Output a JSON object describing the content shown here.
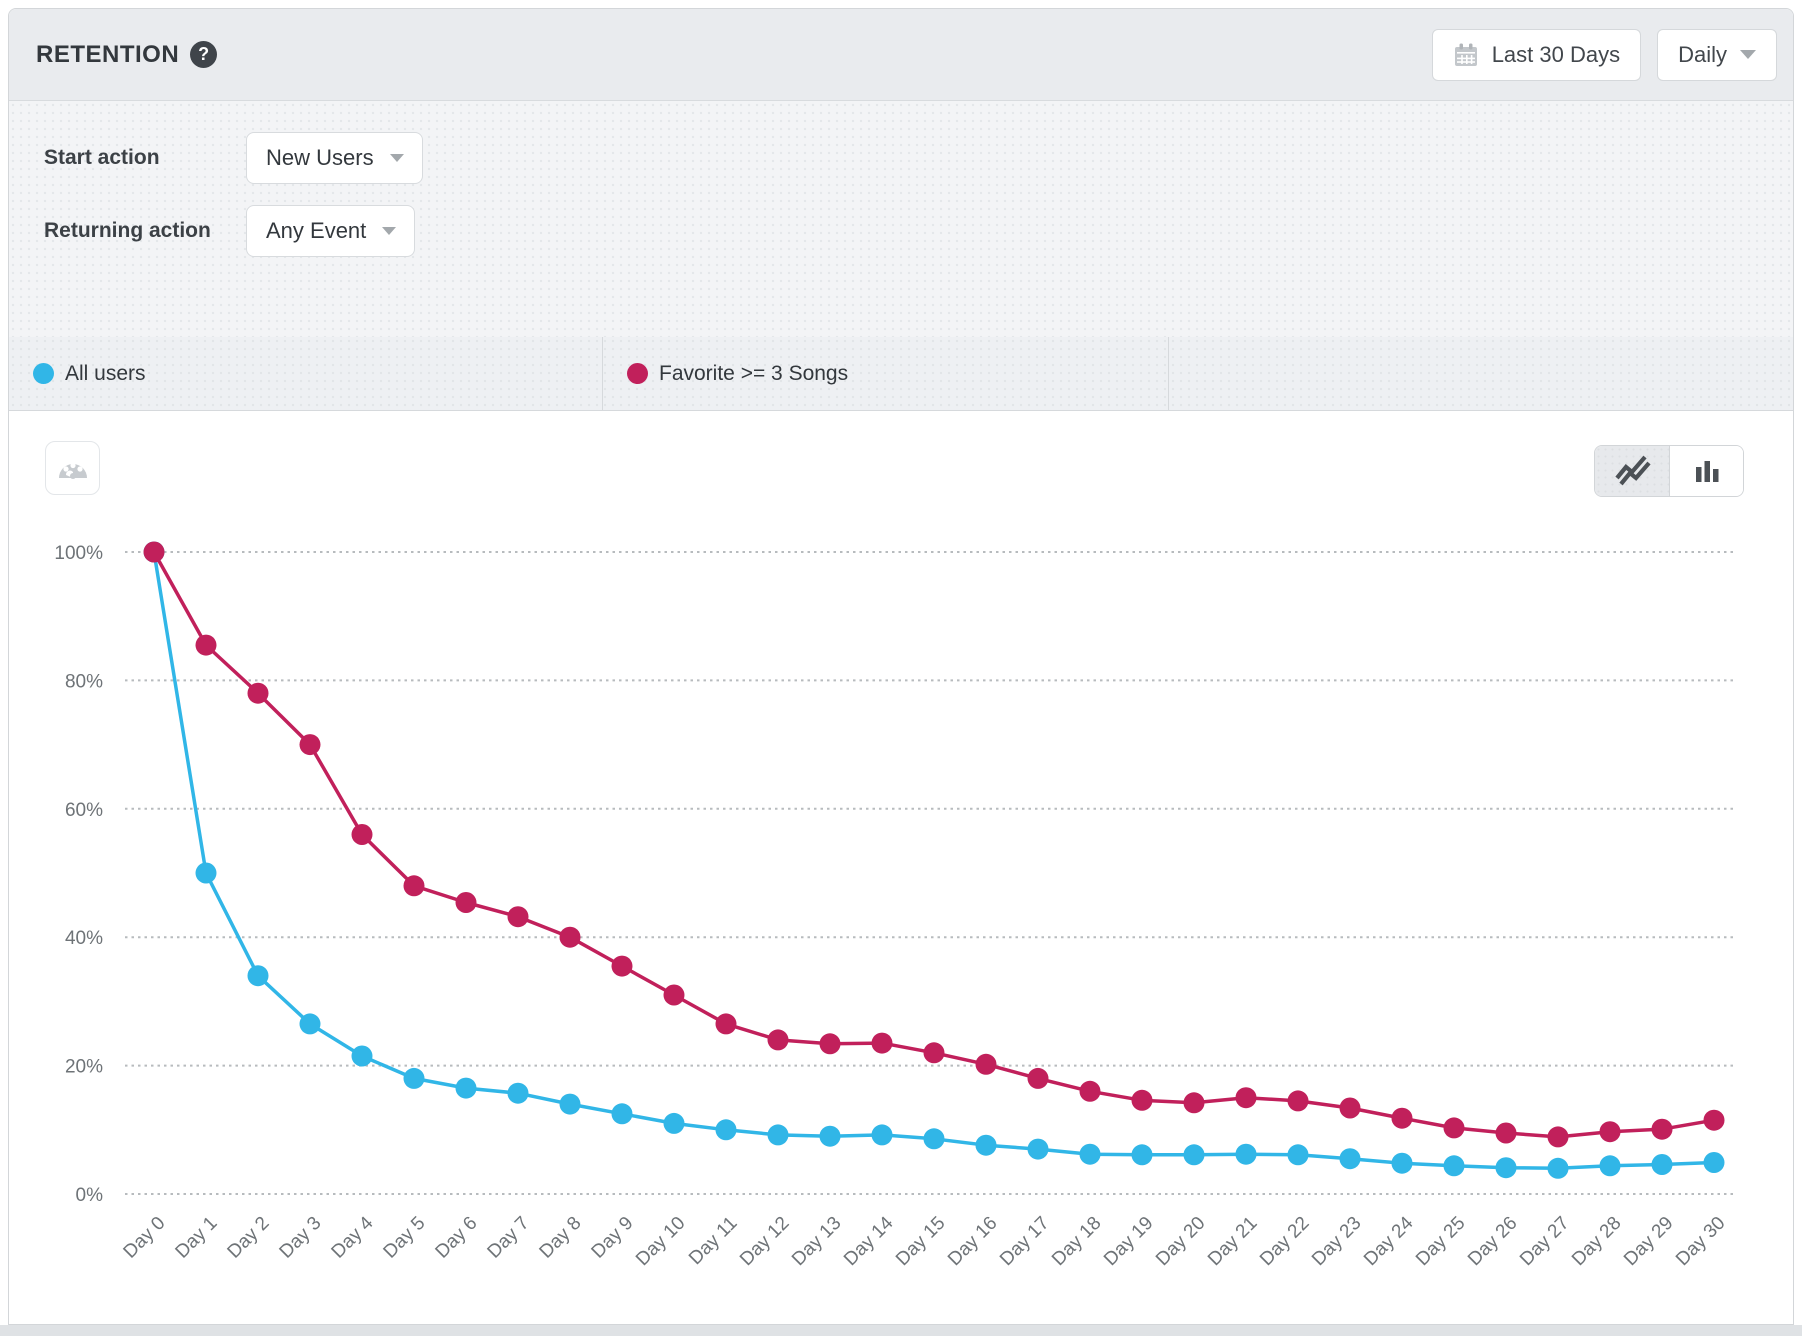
{
  "header": {
    "title": "RETENTION",
    "help_glyph": "?",
    "date_range": "Last 30 Days",
    "granularity": "Daily"
  },
  "filters": {
    "start_action_label": "Start action",
    "start_action_value": "New Users",
    "returning_action_label": "Returning action",
    "returning_action_value": "Any Event"
  },
  "legend": {
    "items": [
      {
        "label": "All users",
        "color": "#31b6e7"
      },
      {
        "label": "Favorite >= 3 Songs",
        "color": "#c1205b"
      }
    ]
  },
  "chart_toggle": {
    "options": [
      {
        "icon": "line-chart-icon",
        "selected": true
      },
      {
        "icon": "bar-chart-icon",
        "selected": false
      }
    ]
  },
  "chart_data": {
    "type": "line",
    "x_labels": [
      "Day 0",
      "Day 1",
      "Day 2",
      "Day 3",
      "Day 4",
      "Day 5",
      "Day 6",
      "Day 7",
      "Day 8",
      "Day 9",
      "Day 10",
      "Day 11",
      "Day 12",
      "Day 13",
      "Day 14",
      "Day 15",
      "Day 16",
      "Day 17",
      "Day 18",
      "Day 19",
      "Day 20",
      "Day 21",
      "Day 22",
      "Day 23",
      "Day 24",
      "Day 25",
      "Day 26",
      "Day 27",
      "Day 28",
      "Day 29",
      "Day 30"
    ],
    "y_ticks": [
      "0%",
      "20%",
      "40%",
      "60%",
      "80%",
      "100%"
    ],
    "ylim": [
      0,
      100
    ],
    "grid": "horizontal-dotted",
    "legend_position": "top-tabs",
    "series": [
      {
        "name": "All users",
        "color": "#31b6e7",
        "values": [
          100,
          50,
          34,
          26.5,
          21.5,
          18,
          16.5,
          15.7,
          14,
          12.5,
          11,
          10,
          9.2,
          9,
          9.2,
          8.6,
          7.6,
          7,
          6.2,
          6.1,
          6.1,
          6.2,
          6.1,
          5.5,
          4.8,
          4.4,
          4.1,
          4,
          4.4,
          4.6,
          4.9
        ]
      },
      {
        "name": "Favorite >= 3 Songs",
        "color": "#c1205b",
        "values": [
          100,
          85.5,
          78,
          70,
          56,
          48,
          45.4,
          43.2,
          40,
          35.5,
          31,
          26.5,
          24,
          23.4,
          23.5,
          22,
          20.2,
          18,
          16,
          14.6,
          14.2,
          15,
          14.5,
          13.4,
          11.8,
          10.3,
          9.5,
          8.9,
          9.7,
          10.1,
          11.5
        ]
      }
    ]
  }
}
